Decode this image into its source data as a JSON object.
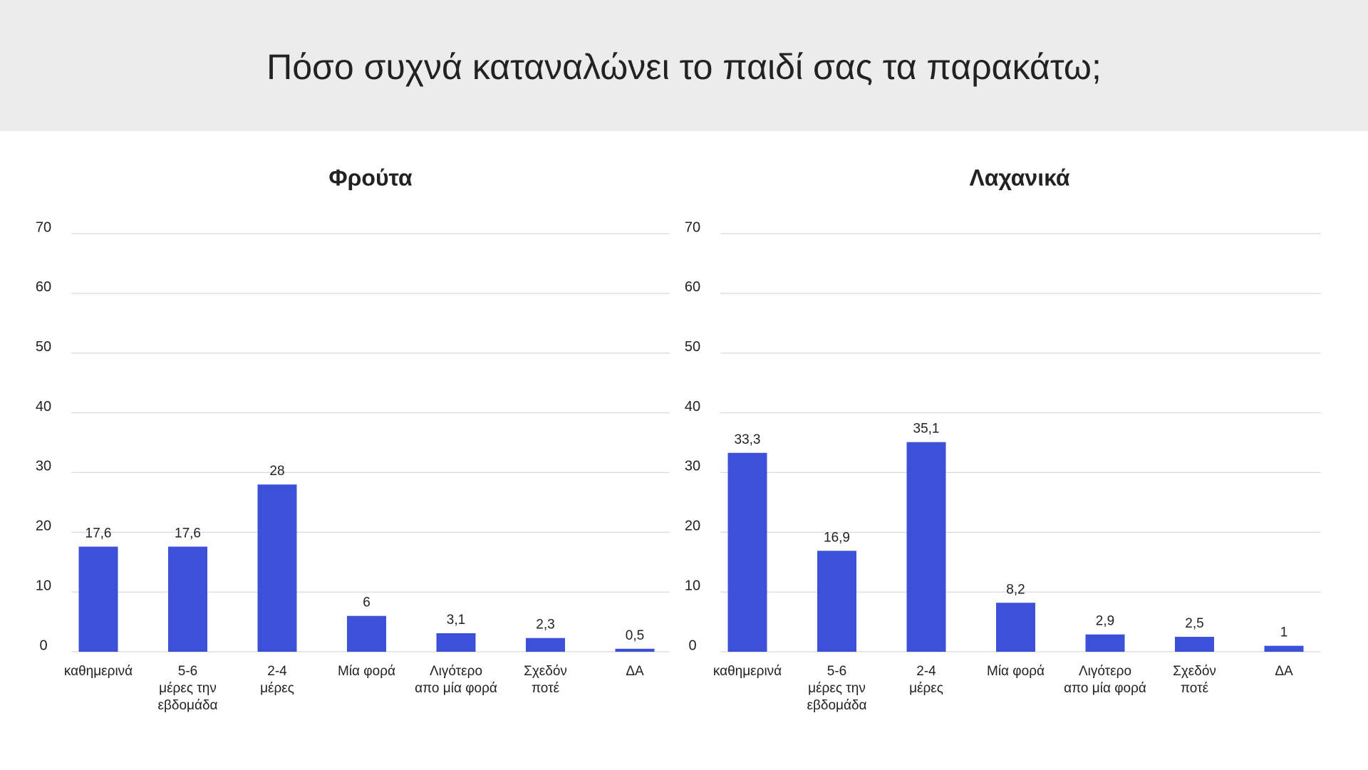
{
  "header": {
    "title": "Πόσο συχνά καταναλώνει το παιδί σας τα παρακάτω;"
  },
  "chart_data": [
    {
      "type": "bar",
      "title": "Φρούτα",
      "categories": [
        "καθημερινά",
        "5-6\nμέρες  την\nεβδομάδα",
        "2-4\nμέρες",
        "Μία φορά",
        "Λιγότερο\nαπο μία φορά",
        "Σχεδόν\nποτέ",
        "ΔΑ"
      ],
      "values": [
        17.6,
        17.6,
        28,
        6,
        3.1,
        2.3,
        0.5
      ],
      "value_labels": [
        "17,6",
        "17,6",
        "28",
        "6",
        "3,1",
        "2,3",
        "0,5"
      ],
      "color": "#3d50d8",
      "ylim": [
        0,
        70
      ],
      "yticks": [
        0,
        10,
        20,
        30,
        40,
        50,
        60,
        70
      ],
      "grid": true
    },
    {
      "type": "bar",
      "title": "Λαχανικά",
      "categories": [
        "καθημερινά",
        "5-6\nμέρες  την\nεβδομάδα",
        "2-4\nμέρες",
        "Μία φορά",
        "Λιγότερο\nαπο μία φορά",
        "Σχεδόν\nποτέ",
        "ΔΑ"
      ],
      "values": [
        33.3,
        16.9,
        35.1,
        8.2,
        2.9,
        2.5,
        1
      ],
      "value_labels": [
        "33,3",
        "16,9",
        "35,1",
        "8,2",
        "2,9",
        "2,5",
        "1"
      ],
      "color": "#3d50d8",
      "ylim": [
        0,
        70
      ],
      "yticks": [
        0,
        10,
        20,
        30,
        40,
        50,
        60,
        70
      ],
      "grid": true
    }
  ]
}
